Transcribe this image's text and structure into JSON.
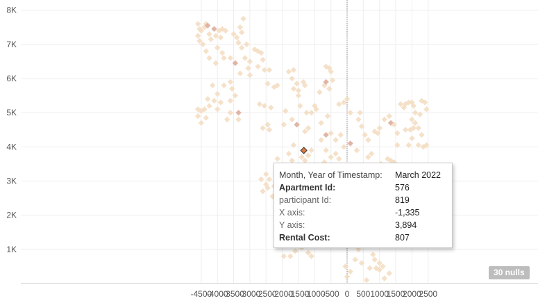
{
  "chart_data": {
    "type": "scatter",
    "title": "",
    "xlabel": "",
    "ylabel": "",
    "xlim": [
      -4900,
      2900
    ],
    "ylim": [
      -100,
      8100
    ],
    "x_ticks": [
      "-4500",
      "-4000",
      "-3500",
      "-3000",
      "-2500",
      "-2000",
      "-1500",
      "-1000",
      "-500",
      "0",
      "500",
      "1000",
      "1500",
      "2000",
      "2500"
    ],
    "x_tick_values": [
      -4500,
      -4000,
      -3500,
      -3000,
      -2500,
      -2000,
      -1500,
      -1000,
      -500,
      0,
      500,
      1000,
      1500,
      2000,
      2500
    ],
    "y_ticks": [
      "1K",
      "2K",
      "3K",
      "4K",
      "5K",
      "6K",
      "7K",
      "8K"
    ],
    "y_tick_values": [
      1000,
      2000,
      3000,
      4000,
      5000,
      6000,
      7000,
      8000
    ],
    "grid": true,
    "reference_line_x": 0,
    "point_color": "#f3dcc0",
    "point_color_dark": "#dca896",
    "highlight_color": "#e07a3a",
    "highlight_point": {
      "x": -1335,
      "y": 3894
    },
    "points": [
      [
        -4600,
        7600
      ],
      [
        -4550,
        7450
      ],
      [
        -4500,
        7400
      ],
      [
        -4400,
        7500
      ],
      [
        -4350,
        7600
      ],
      [
        -4300,
        7550
      ],
      [
        -4250,
        7300
      ],
      [
        -4200,
        7150
      ],
      [
        -4550,
        7100
      ],
      [
        -4600,
        7250
      ],
      [
        -4450,
        7000
      ],
      [
        -4100,
        7450
      ],
      [
        -4050,
        7250
      ],
      [
        -3950,
        7400
      ],
      [
        -3850,
        7450
      ],
      [
        -3900,
        7200
      ],
      [
        -3750,
        7400
      ],
      [
        -4000,
        6900
      ],
      [
        -4350,
        6800
      ],
      [
        -4250,
        6600
      ],
      [
        -4050,
        6450
      ],
      [
        -3850,
        6750
      ],
      [
        -3800,
        6600
      ],
      [
        -3600,
        6600
      ],
      [
        -3500,
        7300
      ],
      [
        -3400,
        7200
      ],
      [
        -3350,
        7050
      ],
      [
        -3250,
        7350
      ],
      [
        -3200,
        7750
      ],
      [
        -3300,
        7500
      ],
      [
        -3100,
        7000
      ],
      [
        -3250,
        6900
      ],
      [
        -3150,
        6600
      ],
      [
        -3000,
        6500
      ],
      [
        -2850,
        6850
      ],
      [
        -2750,
        6800
      ],
      [
        -2650,
        6750
      ],
      [
        -2600,
        6550
      ],
      [
        -2750,
        6350
      ],
      [
        -2550,
        6250
      ],
      [
        -2400,
        6250
      ],
      [
        -3050,
        6300
      ],
      [
        -3450,
        6450
      ],
      [
        -3300,
        6150
      ],
      [
        -3000,
        6100
      ],
      [
        -3600,
        5900
      ],
      [
        -3550,
        5700
      ],
      [
        -3450,
        5500
      ],
      [
        -3600,
        5350
      ],
      [
        -3800,
        5800
      ],
      [
        -4000,
        5550
      ],
      [
        -4150,
        5800
      ],
      [
        -4100,
        5350
      ],
      [
        -4250,
        5200
      ],
      [
        -4300,
        5400
      ],
      [
        -4400,
        5100
      ],
      [
        -4500,
        5050
      ],
      [
        -4600,
        4900
      ],
      [
        -4500,
        4700
      ],
      [
        -4350,
        4850
      ],
      [
        -4600,
        5100
      ],
      [
        -4000,
        5100
      ],
      [
        -3900,
        5300
      ],
      [
        -3700,
        4800
      ],
      [
        -3350,
        5000
      ],
      [
        -3350,
        4800
      ],
      [
        -3600,
        5000
      ],
      [
        -2700,
        5250
      ],
      [
        -2550,
        5200
      ],
      [
        -2350,
        5150
      ],
      [
        -2450,
        4650
      ],
      [
        -2600,
        4550
      ],
      [
        -2400,
        4500
      ],
      [
        -2250,
        5750
      ],
      [
        -2150,
        5800
      ],
      [
        -2450,
        5850
      ],
      [
        -1900,
        5050
      ],
      [
        -1950,
        4650
      ],
      [
        -1700,
        4800
      ],
      [
        -1550,
        4650
      ],
      [
        -1800,
        6200
      ],
      [
        -1650,
        6250
      ],
      [
        -1700,
        6000
      ],
      [
        -1550,
        5850
      ],
      [
        -1650,
        5700
      ],
      [
        -1500,
        5650
      ],
      [
        -1350,
        5900
      ],
      [
        -1300,
        5800
      ],
      [
        -1500,
        5500
      ],
      [
        -1450,
        5200
      ],
      [
        -1250,
        5000
      ],
      [
        -1100,
        5000
      ],
      [
        -1000,
        5200
      ],
      [
        -950,
        5100
      ],
      [
        -800,
        4700
      ],
      [
        -600,
        4900
      ],
      [
        -1200,
        4550
      ],
      [
        -1300,
        4450
      ],
      [
        -1650,
        4050
      ],
      [
        -1800,
        3800
      ],
      [
        -1700,
        3600
      ],
      [
        -1400,
        3700
      ],
      [
        -1300,
        3600
      ],
      [
        -1200,
        3750
      ],
      [
        -1100,
        3900
      ],
      [
        -1050,
        3400
      ],
      [
        -1150,
        3150
      ],
      [
        -1300,
        3000
      ],
      [
        -1350,
        3200
      ],
      [
        -1450,
        3100
      ],
      [
        -1600,
        2900
      ],
      [
        -1650,
        2700
      ],
      [
        -1900,
        2850
      ],
      [
        -1750,
        2500
      ],
      [
        -1550,
        2400
      ],
      [
        -1400,
        2600
      ],
      [
        -1250,
        2400
      ],
      [
        -1150,
        2200
      ],
      [
        -1300,
        2100
      ],
      [
        -1350,
        1900
      ],
      [
        -1500,
        1800
      ],
      [
        -1650,
        1900
      ],
      [
        -1750,
        1650
      ],
      [
        -1550,
        1700
      ],
      [
        -1900,
        1800
      ],
      [
        -2000,
        2100
      ],
      [
        -2100,
        1900
      ],
      [
        -2150,
        2300
      ],
      [
        -2300,
        2550
      ],
      [
        -2150,
        2700
      ],
      [
        -2000,
        2600
      ],
      [
        -2250,
        2850
      ],
      [
        -2450,
        2800
      ],
      [
        -2600,
        2700
      ],
      [
        -2500,
        2900
      ],
      [
        -2650,
        3050
      ],
      [
        -2500,
        3200
      ],
      [
        -2400,
        3050
      ],
      [
        -2200,
        3200
      ],
      [
        -1950,
        3200
      ],
      [
        -2150,
        3650
      ],
      [
        -1950,
        2150
      ],
      [
        -1400,
        1400
      ],
      [
        -1550,
        1200
      ],
      [
        -1400,
        1050
      ],
      [
        -1600,
        950
      ],
      [
        -1750,
        800
      ],
      [
        -1950,
        800
      ],
      [
        -1800,
        1300
      ],
      [
        -1150,
        1200
      ],
      [
        -1200,
        900
      ],
      [
        -1100,
        800
      ],
      [
        -800,
        4200
      ],
      [
        -650,
        4350
      ],
      [
        -500,
        4400
      ],
      [
        -350,
        4200
      ],
      [
        -200,
        4350
      ],
      [
        -100,
        4000
      ],
      [
        -500,
        3700
      ],
      [
        -700,
        3550
      ],
      [
        -900,
        3200
      ],
      [
        -750,
        2900
      ],
      [
        -900,
        2600
      ],
      [
        -600,
        2500
      ],
      [
        -800,
        2300
      ],
      [
        -650,
        3900
      ],
      [
        -350,
        3800
      ],
      [
        -250,
        3650
      ],
      [
        -850,
        5600
      ],
      [
        -700,
        5800
      ],
      [
        -650,
        5900
      ],
      [
        -500,
        6200
      ],
      [
        -550,
        5700
      ],
      [
        -450,
        5950
      ],
      [
        -550,
        6300
      ],
      [
        -650,
        6350
      ],
      [
        -250,
        5250
      ],
      [
        -100,
        5300
      ],
      [
        0,
        5400
      ],
      [
        100,
        5000
      ],
      [
        400,
        5000
      ],
      [
        350,
        4800
      ],
      [
        450,
        4600
      ],
      [
        550,
        4350
      ],
      [
        650,
        4200
      ],
      [
        750,
        3800
      ],
      [
        650,
        3700
      ],
      [
        1000,
        4550
      ],
      [
        1150,
        4800
      ],
      [
        1300,
        4900
      ],
      [
        1350,
        4700
      ],
      [
        1450,
        4650
      ],
      [
        1550,
        4400
      ],
      [
        1800,
        4500
      ],
      [
        1950,
        4500
      ],
      [
        2050,
        4550
      ],
      [
        2200,
        4550
      ],
      [
        2300,
        4350
      ],
      [
        1650,
        5250
      ],
      [
        1750,
        5150
      ],
      [
        1800,
        5250
      ],
      [
        1900,
        5300
      ],
      [
        2000,
        5300
      ],
      [
        2100,
        5000
      ],
      [
        2250,
        4950
      ],
      [
        2400,
        5300
      ],
      [
        2450,
        5100
      ],
      [
        2300,
        5350
      ],
      [
        2050,
        5200
      ],
      [
        2000,
        4800
      ],
      [
        2100,
        4700
      ],
      [
        1550,
        4050
      ],
      [
        1900,
        4050
      ],
      [
        2000,
        4250
      ],
      [
        2200,
        4050
      ],
      [
        2350,
        4000
      ],
      [
        2450,
        4050
      ],
      [
        1250,
        3650
      ],
      [
        1350,
        3600
      ],
      [
        1450,
        3550
      ],
      [
        1550,
        3450
      ],
      [
        1650,
        3300
      ],
      [
        1750,
        3350
      ],
      [
        1150,
        3450
      ],
      [
        1050,
        3500
      ],
      [
        800,
        3400
      ],
      [
        650,
        3000
      ],
      [
        100,
        4100
      ],
      [
        300,
        3900
      ],
      [
        600,
        100
      ],
      [
        850,
        700
      ],
      [
        1000,
        600
      ],
      [
        800,
        850
      ],
      [
        1100,
        500
      ],
      [
        900,
        450
      ],
      [
        700,
        450
      ],
      [
        1000,
        400
      ],
      [
        450,
        600
      ],
      [
        350,
        1000
      ],
      [
        250,
        700
      ],
      [
        0,
        200
      ],
      [
        -50,
        500
      ],
      [
        100,
        350
      ],
      [
        1300,
        300
      ],
      [
        1150,
        150
      ],
      [
        850,
        4450
      ],
      [
        950,
        4400
      ]
    ]
  },
  "tooltip": {
    "rows": [
      {
        "key": "Month, Year of Timestamp:",
        "value": "March 2022"
      },
      {
        "key": "Apartment Id:",
        "value": "576"
      },
      {
        "key": "participant Id:",
        "value": "819"
      },
      {
        "key": "X axis:",
        "value": "-1,335"
      },
      {
        "key": "Y axis:",
        "value": "3,894"
      },
      {
        "key": "Rental Cost:",
        "value": "807"
      }
    ]
  },
  "nulls_badge": "30 nulls"
}
